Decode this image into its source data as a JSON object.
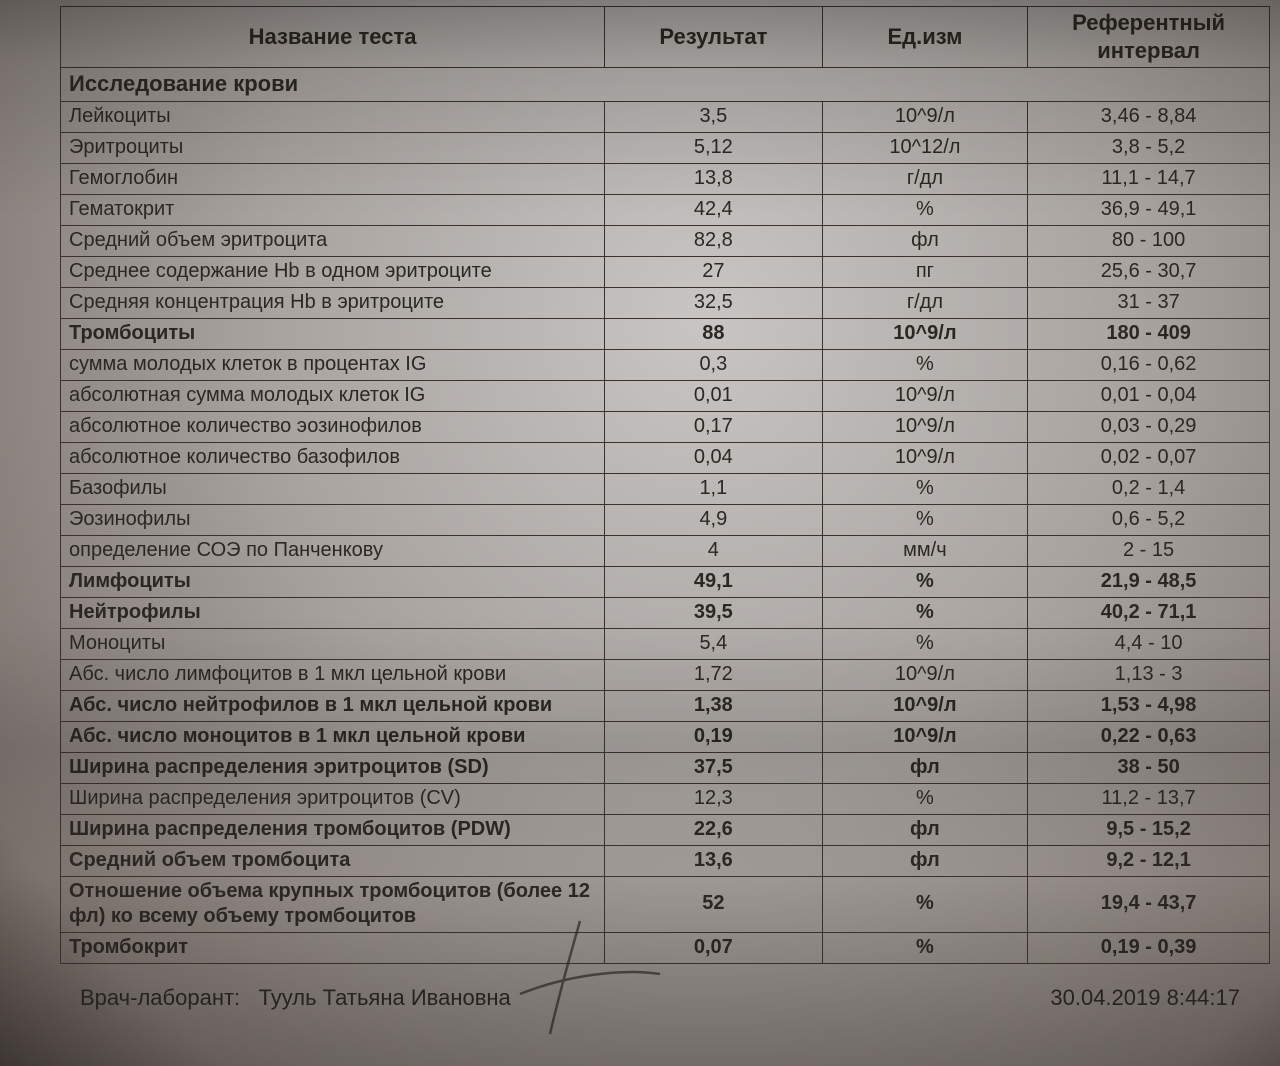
{
  "header": {
    "name": "Название теста",
    "result": "Результат",
    "unit": "Ед.изм",
    "ref": "Референтный интервал"
  },
  "section_title": "Исследование крови",
  "rows": [
    {
      "name": "Лейкоциты",
      "result": "3,5",
      "unit": "10^9/л",
      "ref": "3,46 - 8,84",
      "bold": false
    },
    {
      "name": "Эритроциты",
      "result": "5,12",
      "unit": "10^12/л",
      "ref": "3,8 - 5,2",
      "bold": false
    },
    {
      "name": "Гемоглобин",
      "result": "13,8",
      "unit": "г/дл",
      "ref": "11,1 - 14,7",
      "bold": false
    },
    {
      "name": "Гематокрит",
      "result": "42,4",
      "unit": "%",
      "ref": "36,9 - 49,1",
      "bold": false
    },
    {
      "name": "Средний объем эритроцита",
      "result": "82,8",
      "unit": "фл",
      "ref": "80 - 100",
      "bold": false
    },
    {
      "name": "Среднее содержание Hb в одном эритроците",
      "result": "27",
      "unit": "пг",
      "ref": "25,6 - 30,7",
      "bold": false
    },
    {
      "name": "Средняя концентрация Hb в эритроците",
      "result": "32,5",
      "unit": "г/дл",
      "ref": "31 - 37",
      "bold": false
    },
    {
      "name": "Тромбоциты",
      "result": "88",
      "unit": "10^9/л",
      "ref": "180 - 409",
      "bold": true
    },
    {
      "name": "сумма молодых клеток в процентах IG",
      "result": "0,3",
      "unit": "%",
      "ref": "0,16 - 0,62",
      "bold": false
    },
    {
      "name": "абсолютная сумма молодых клеток IG",
      "result": "0,01",
      "unit": "10^9/л",
      "ref": "0,01 - 0,04",
      "bold": false
    },
    {
      "name": "абсолютное количество эозинофилов",
      "result": "0,17",
      "unit": "10^9/л",
      "ref": "0,03 - 0,29",
      "bold": false
    },
    {
      "name": "абсолютное количество базофилов",
      "result": "0,04",
      "unit": "10^9/л",
      "ref": "0,02 - 0,07",
      "bold": false
    },
    {
      "name": "Базофилы",
      "result": "1,1",
      "unit": "%",
      "ref": "0,2 - 1,4",
      "bold": false
    },
    {
      "name": "Эозинофилы",
      "result": "4,9",
      "unit": "%",
      "ref": "0,6 - 5,2",
      "bold": false
    },
    {
      "name": "определение СОЭ по Панченкову",
      "result": "4",
      "unit": "мм/ч",
      "ref": "2 - 15",
      "bold": false
    },
    {
      "name": "Лимфоциты",
      "result": "49,1",
      "unit": "%",
      "ref": "21,9 - 48,5",
      "bold": true
    },
    {
      "name": "Нейтрофилы",
      "result": "39,5",
      "unit": "%",
      "ref": "40,2 - 71,1",
      "bold": true
    },
    {
      "name": "Моноциты",
      "result": "5,4",
      "unit": "%",
      "ref": "4,4 - 10",
      "bold": false
    },
    {
      "name": "Абс. число лимфоцитов в 1 мкл цельной крови",
      "result": "1,72",
      "unit": "10^9/л",
      "ref": "1,13 - 3",
      "bold": false
    },
    {
      "name": "Абс. число нейтрофилов в 1 мкл цельной крови",
      "result": "1,38",
      "unit": "10^9/л",
      "ref": "1,53 - 4,98",
      "bold": true
    },
    {
      "name": "Абс. число моноцитов в 1 мкл цельной крови",
      "result": "0,19",
      "unit": "10^9/л",
      "ref": "0,22 - 0,63",
      "bold": true
    },
    {
      "name": "Ширина распределения эритроцитов (SD)",
      "result": "37,5",
      "unit": "фл",
      "ref": "38 - 50",
      "bold": true
    },
    {
      "name": "Ширина распределения эритроцитов (CV)",
      "result": "12,3",
      "unit": "%",
      "ref": "11,2 - 13,7",
      "bold": false
    },
    {
      "name": "Ширина распределения тромбоцитов (PDW)",
      "result": "22,6",
      "unit": "фл",
      "ref": "9,5 - 15,2",
      "bold": true
    },
    {
      "name": "Средний объем тромбоцита",
      "result": "13,6",
      "unit": "фл",
      "ref": "9,2 - 12,1",
      "bold": true
    },
    {
      "name": "Отношение объема крупных тромбоцитов (более 12 фл) ко всему объему тромбоцитов",
      "result": "52",
      "unit": "%",
      "ref": "19,4 - 43,7",
      "bold": true
    },
    {
      "name": "Тромбокрит",
      "result": "0,07",
      "unit": "%",
      "ref": "0,19 - 0,39",
      "bold": true
    }
  ],
  "footer": {
    "doctor_label": "Врач-лаборант:",
    "doctor_name": "Тууль Татьяна Ивановна",
    "datetime": "30.04.2019 8:44:17"
  },
  "style": {
    "border_color": "#3a332d",
    "text_color": "#2b2722",
    "font_size_row": 20,
    "font_size_header": 22
  }
}
